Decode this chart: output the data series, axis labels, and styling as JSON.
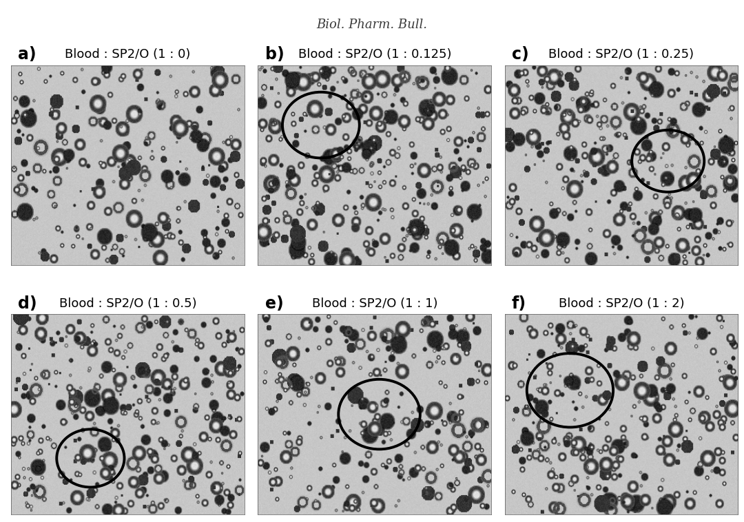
{
  "title": "Biol. Pharm. Bull.",
  "title_style": "italic",
  "title_fontsize": 13,
  "background_color": "#ffffff",
  "labels": [
    "a)",
    "b)",
    "c)",
    "d)",
    "e)",
    "f)"
  ],
  "subtitles": [
    "Blood : SP2/O (1 : 0)",
    "Blood : SP2/O (1 : 0.125)",
    "Blood : SP2/O (1 : 0.25)",
    "Blood : SP2/O (1 : 0.5)",
    "Blood : SP2/O (1 : 1)",
    "Blood : SP2/O (1 : 2)"
  ],
  "circles": [
    null,
    [
      0.27,
      0.7,
      0.165
    ],
    [
      0.7,
      0.52,
      0.155
    ],
    [
      0.34,
      0.28,
      0.145
    ],
    [
      0.52,
      0.5,
      0.175
    ],
    [
      0.28,
      0.62,
      0.185
    ]
  ],
  "label_fontsize": 17,
  "subtitle_fontsize": 13,
  "nrows": 2,
  "ncols": 3,
  "fig_width": 10.8,
  "fig_height": 7.58,
  "bg_gray": 0.78,
  "cell_counts": [
    280,
    420,
    380,
    400,
    320,
    360
  ]
}
